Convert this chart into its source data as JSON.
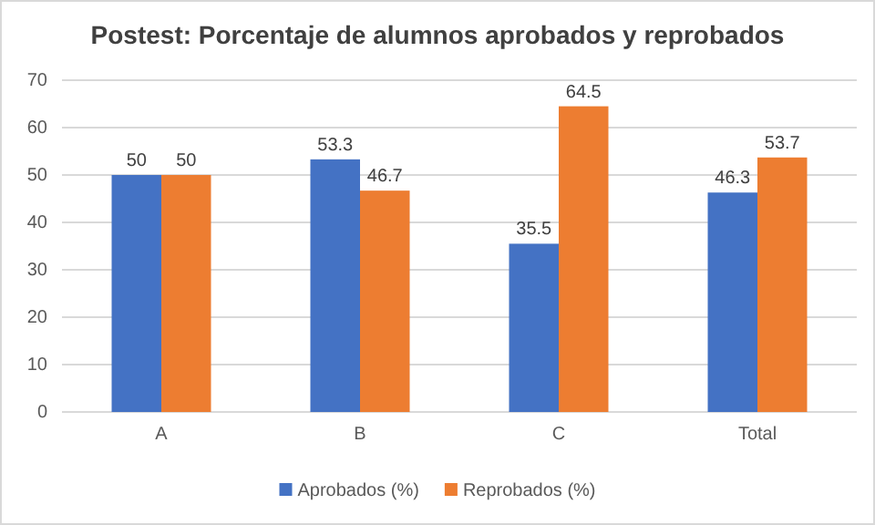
{
  "chart_data": {
    "type": "bar",
    "title": "Postest: Porcentaje de alumnos aprobados y reprobados",
    "categories": [
      "A",
      "B",
      "C",
      "Total"
    ],
    "series": [
      {
        "name": "Aprobados (%)",
        "color": "#4472c4",
        "values": [
          50,
          53.3,
          35.5,
          46.3
        ]
      },
      {
        "name": "Reprobados (%)",
        "color": "#ed7d31",
        "values": [
          50,
          46.7,
          64.5,
          53.7
        ]
      }
    ],
    "ylim": [
      0,
      70
    ],
    "yticks": [
      0,
      10,
      20,
      30,
      40,
      50,
      60,
      70
    ],
    "grid": "y",
    "legend": "bottom",
    "data_labels": true
  }
}
